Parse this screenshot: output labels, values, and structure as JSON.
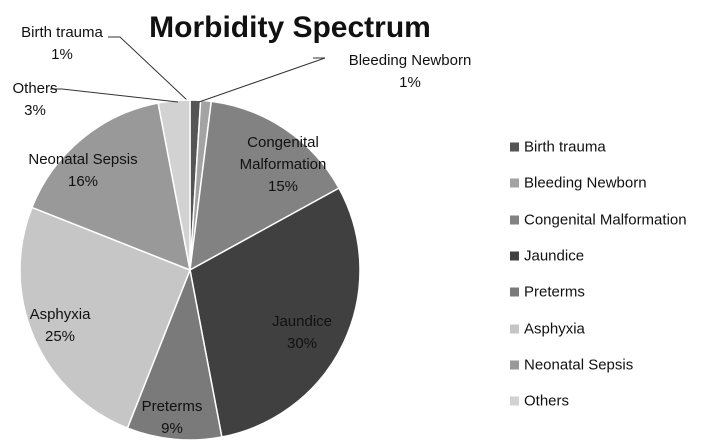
{
  "chart_data": {
    "type": "pie",
    "title": "Morbidity Spectrum",
    "categories": [
      "Birth trauma",
      "Bleeding Newborn",
      "Congenital Malformation",
      "Jaundice",
      "Preterms",
      "Asphyxia",
      "Neonatal Sepsis",
      "Others"
    ],
    "values": [
      1,
      1,
      15,
      30,
      9,
      25,
      16,
      3
    ],
    "value_labels": [
      "1%",
      "1%",
      "15%",
      "30%",
      "9%",
      "25%",
      "16%",
      "3%"
    ],
    "colors": [
      "#555555",
      "#a3a3a3",
      "#828282",
      "#404040",
      "#7a7a7a",
      "#c6c6c6",
      "#999999",
      "#d2d2d2"
    ],
    "legend": "right"
  }
}
